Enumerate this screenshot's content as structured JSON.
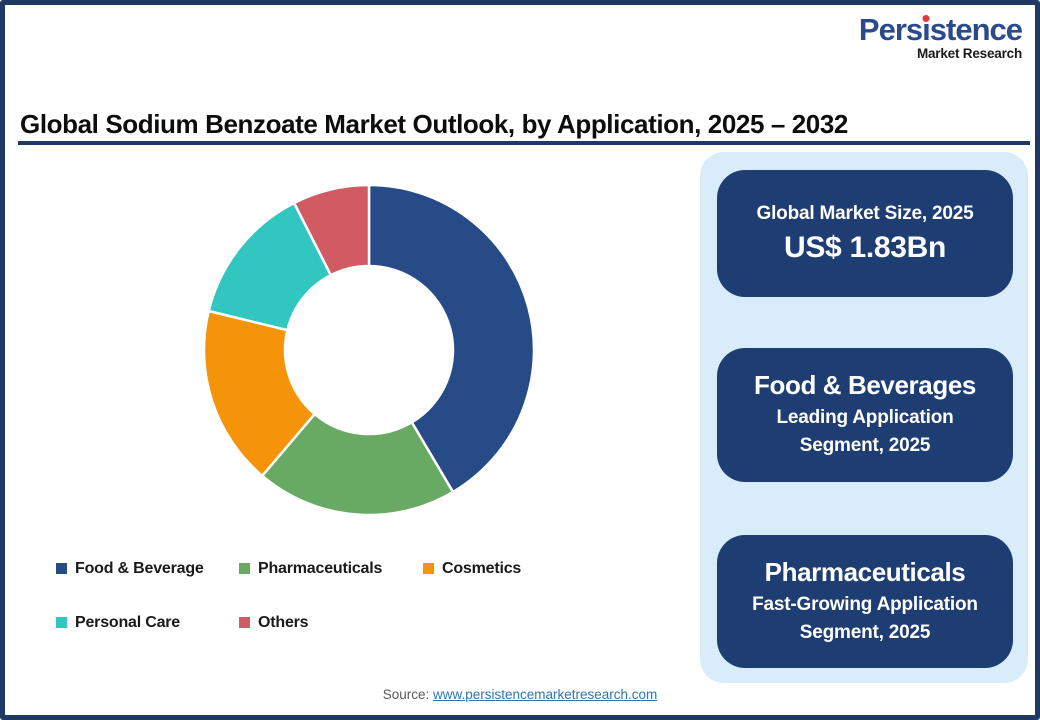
{
  "theme": {
    "navy": "#1f3864",
    "card_bg": "#1e3d72",
    "panel_bg": "#d9ecf9",
    "logo_blue": "#2b4a8c",
    "logo_dot": "#e8353a",
    "link_blue": "#2e75b6",
    "source_gray": "#595959"
  },
  "logo": {
    "name_before_i": "Pers",
    "name_i": "ı",
    "name_after_i": "stence",
    "tagline": "Market Research"
  },
  "header": {
    "title": "Global Sodium Benzoate Market Outlook, by Application, 2025 – 2032"
  },
  "chart_data": {
    "type": "pie",
    "subtype": "donut",
    "title": "Global Sodium Benzoate Market Outlook, by Application, 2025 – 2032",
    "categories": [
      "Food & Beverage",
      "Pharmaceuticals",
      "Cosmetics",
      "Personal Care",
      "Others"
    ],
    "values": [
      41.5,
      19.7,
      17.6,
      13.7,
      7.5
    ],
    "value_note": "percent of circle, estimated from arc angles (no data labels shown)",
    "colors": [
      "#274b87",
      "#68aa64",
      "#f59408",
      "#31c7c0",
      "#d05b62"
    ],
    "donut_hole_ratio": 0.51,
    "start_angle_deg": 0,
    "direction": "clockwise",
    "legend_position": "bottom-left"
  },
  "cards": [
    {
      "title": "Global Market Size, 2025",
      "value": "US$ 1.83Bn"
    },
    {
      "title": "Food & Beverages",
      "subtitle": "Leading Application Segment, 2025"
    },
    {
      "title": "Pharmaceuticals",
      "subtitle": "Fast-Growing Application Segment, 2025"
    }
  ],
  "source": {
    "label": "Source: ",
    "link_text": "www.persistencemarketresearch.com"
  }
}
